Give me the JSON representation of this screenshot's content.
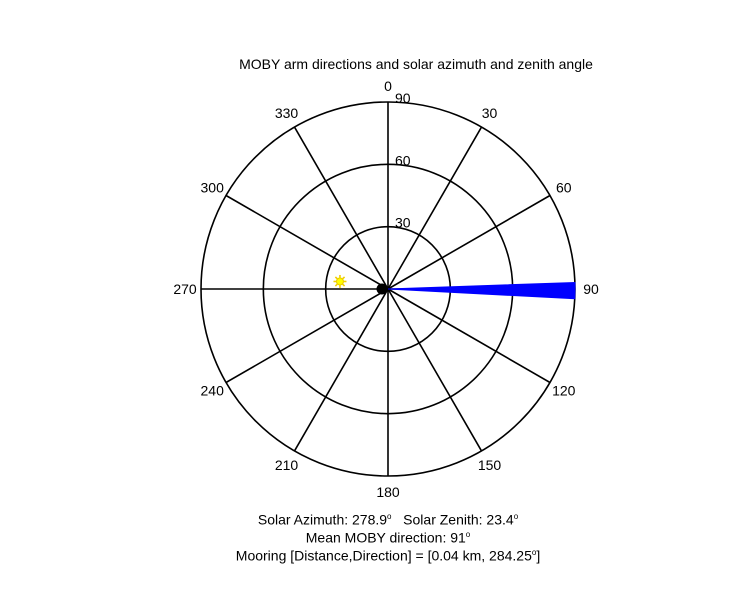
{
  "chart_data": {
    "type": "polar",
    "title": "MOBY arm directions and solar azimuth and zenith angle",
    "angle_ticks": [
      {
        "deg": 0,
        "label": "0"
      },
      {
        "deg": 30,
        "label": "30"
      },
      {
        "deg": 60,
        "label": "60"
      },
      {
        "deg": 90,
        "label": "90"
      },
      {
        "deg": 120,
        "label": "120"
      },
      {
        "deg": 150,
        "label": "150"
      },
      {
        "deg": 180,
        "label": "180"
      },
      {
        "deg": 210,
        "label": "210"
      },
      {
        "deg": 240,
        "label": "240"
      },
      {
        "deg": 270,
        "label": "270"
      },
      {
        "deg": 300,
        "label": "300"
      },
      {
        "deg": 330,
        "label": "330"
      }
    ],
    "radial_ticks": [
      {
        "value": 30,
        "label": "30"
      },
      {
        "value": 60,
        "label": "60"
      },
      {
        "value": 90,
        "label": "90"
      }
    ],
    "radial_max": 90,
    "moby_wedge": {
      "angle_from": 88,
      "angle_to": 93,
      "color": "#0000ff"
    },
    "sun_marker": {
      "azimuth": 278.9,
      "zenith": 23.4,
      "color": "#ffff00"
    },
    "center_marker": {
      "color": "#000000"
    },
    "annotations": {
      "solar_azimuth_label": "Solar Azimuth: 278.9",
      "solar_zenith_label": "Solar Zenith: 23.4",
      "degree_symbol": "o",
      "mean_direction_label": "Mean MOBY direction: 91",
      "mooring_label": "Mooring [Distance,Direction] = [0.04 km, 284.25",
      "mooring_tail": "]"
    }
  }
}
